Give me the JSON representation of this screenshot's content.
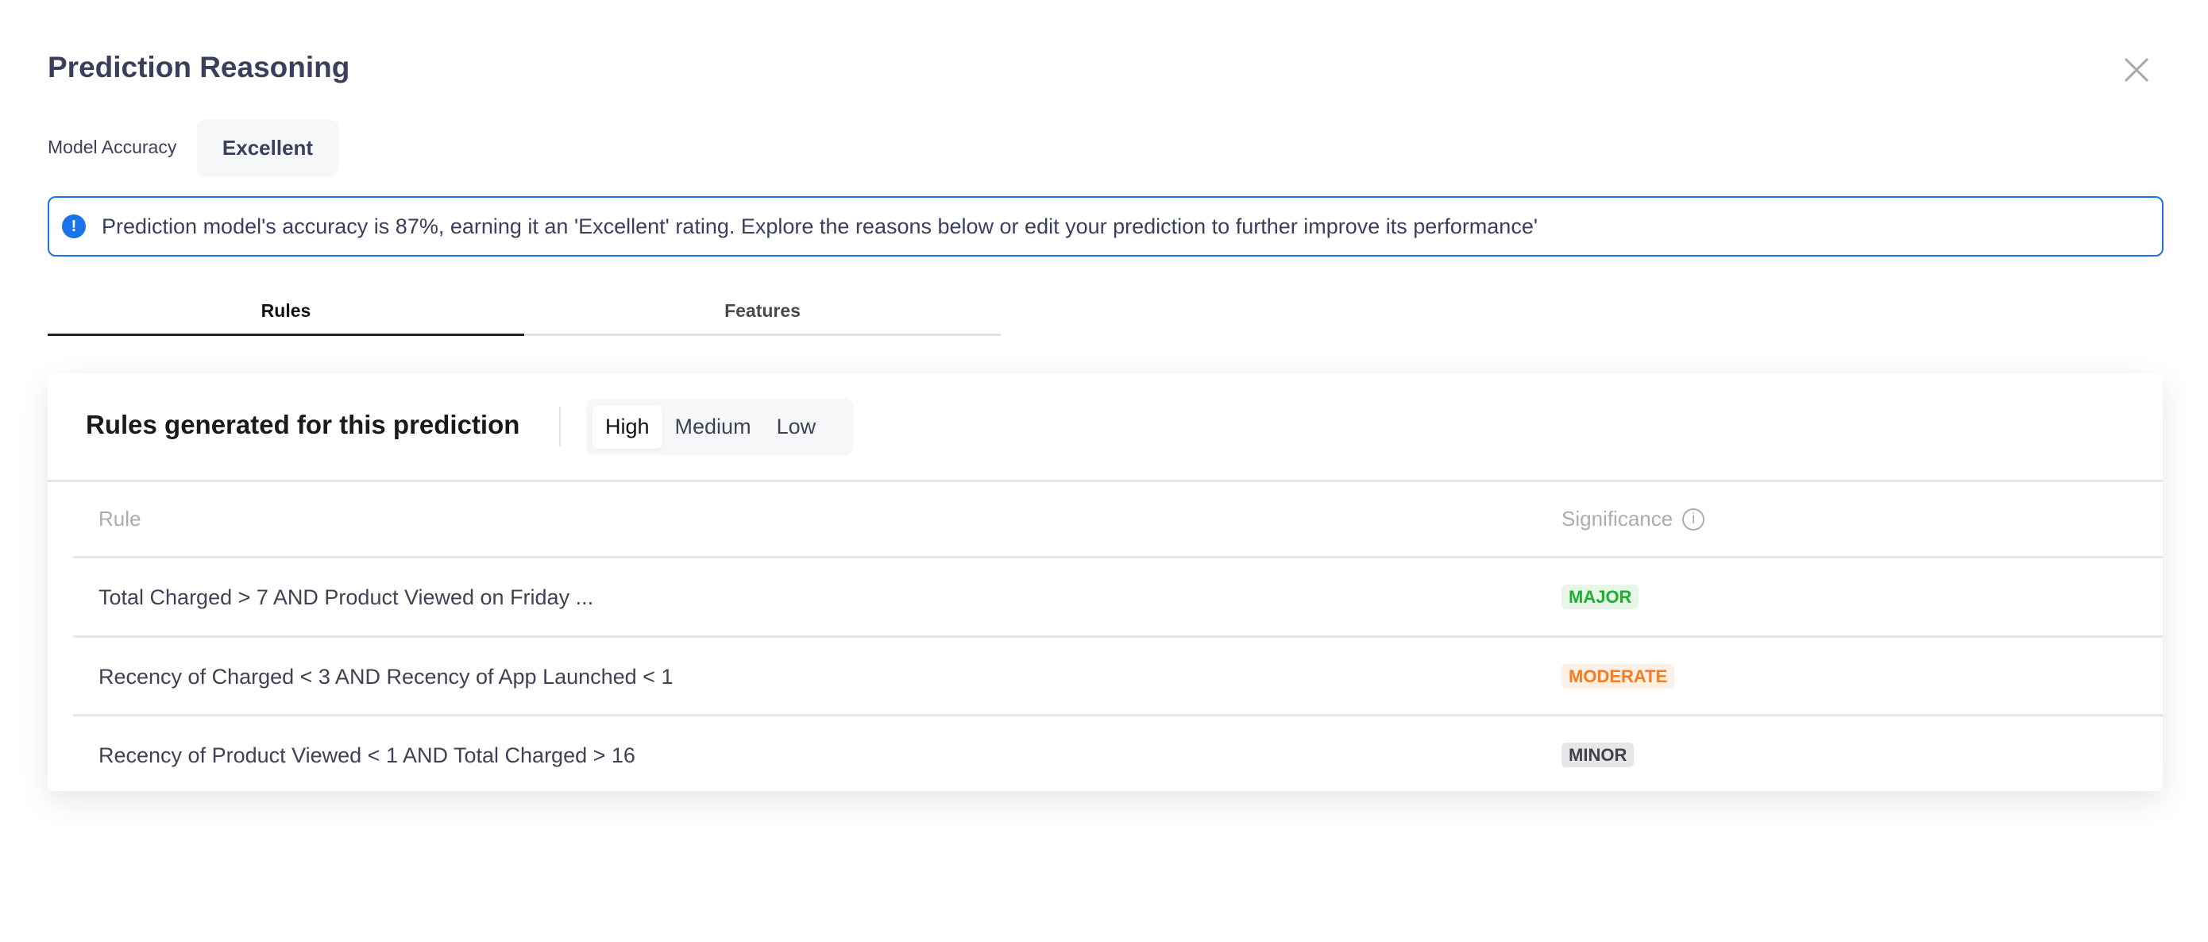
{
  "header": {
    "title": "Prediction Reasoning",
    "close_icon": "close-icon"
  },
  "accuracy": {
    "label": "Model Accuracy",
    "value": "Excellent"
  },
  "banner": {
    "icon": "exclamation-circle-icon",
    "text": "Prediction model's accuracy is 87%, earning it an 'Excellent' rating. Explore the reasons below or edit your prediction to further improve its performance'",
    "color": "#1a73e8"
  },
  "tabs": [
    {
      "label": "Rules",
      "active": true
    },
    {
      "label": "Features",
      "active": false
    }
  ],
  "card": {
    "title": "Rules generated for this prediction",
    "filters": [
      {
        "label": "High",
        "active": true
      },
      {
        "label": "Medium",
        "active": false
      },
      {
        "label": "Low",
        "active": false
      }
    ],
    "columns": {
      "rule": "Rule",
      "significance": "Significance",
      "info_icon": "info-icon"
    },
    "rows": [
      {
        "rule": "Total Charged > 7 AND Product Viewed on Friday ...",
        "significance": "MAJOR",
        "color": "#1fae2e",
        "bg": "#e8f6ea"
      },
      {
        "rule": "Recency of Charged < 3 AND Recency of App Launched < 1",
        "significance": "MODERATE",
        "color": "#f77b1f",
        "bg": "#fef0e6"
      },
      {
        "rule": "Recency of Product Viewed < 1 AND Total Charged > 16",
        "significance": "MINOR",
        "color": "#3f4247",
        "bg": "#e5e6e8"
      }
    ]
  }
}
